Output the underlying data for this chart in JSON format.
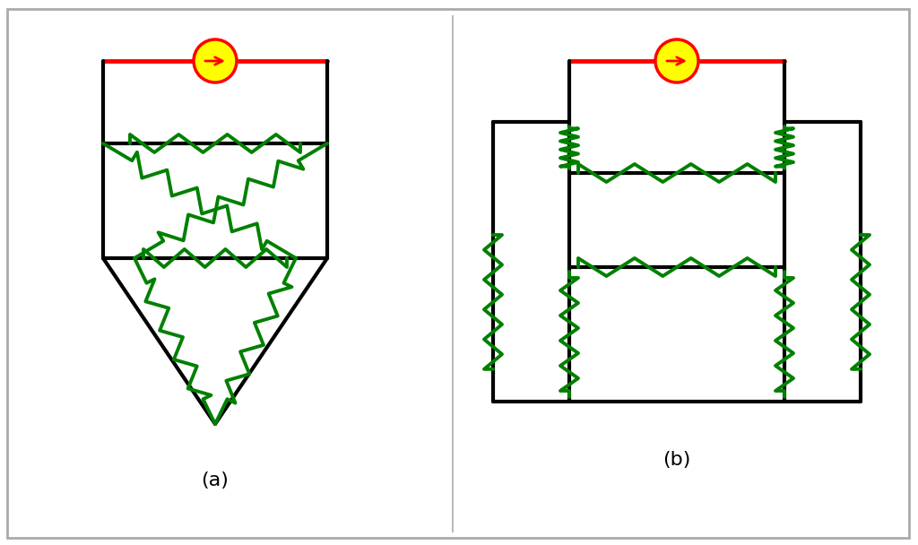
{
  "bg_color": "#ffffff",
  "line_color": "#000000",
  "resistor_color": "#008000",
  "source_fill": "#ffff00",
  "source_edge": "#ff0000",
  "source_arrow": "#ff0000",
  "wire_source_color": "#ff0000",
  "label_a": "(a)",
  "label_b": "(b)",
  "label_fontsize": 16,
  "line_width": 3.0,
  "resistor_lw": 2.8,
  "border_color": "#aaaaaa"
}
